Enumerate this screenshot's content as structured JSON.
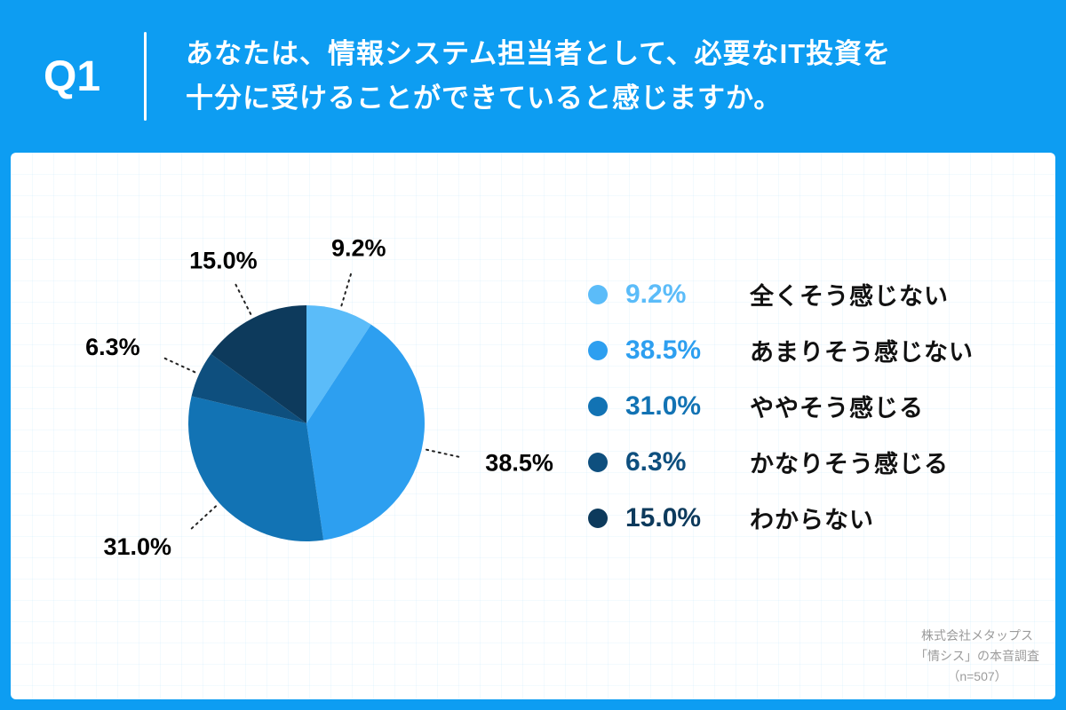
{
  "header": {
    "q_label": "Q1",
    "line1": "あなたは、情報システム担当者として、必要なIT投資を",
    "line2": "十分に受けることができていると感じますか。"
  },
  "chart_data": {
    "type": "pie",
    "title": "",
    "start_angle_deg": 0,
    "direction": "clockwise",
    "value_suffix": "%",
    "legend_position": "right",
    "slices": [
      {
        "label": "全くそう感じない",
        "value": 9.2,
        "color": "#5BBCF9"
      },
      {
        "label": "あまりそう感じない",
        "value": 38.5,
        "color": "#2D9FF0"
      },
      {
        "label": "ややそう感じる",
        "value": 31.0,
        "color": "#1273B4"
      },
      {
        "label": "かなりそう感じる",
        "value": 6.3,
        "color": "#0E4F7E"
      },
      {
        "label": "わからない",
        "value": 15.0,
        "color": "#0D3A5C"
      }
    ]
  },
  "footer": {
    "line1": "株式会社メタップス",
    "line2": "「情シス」の本音調査",
    "line3": "（n=507）"
  }
}
